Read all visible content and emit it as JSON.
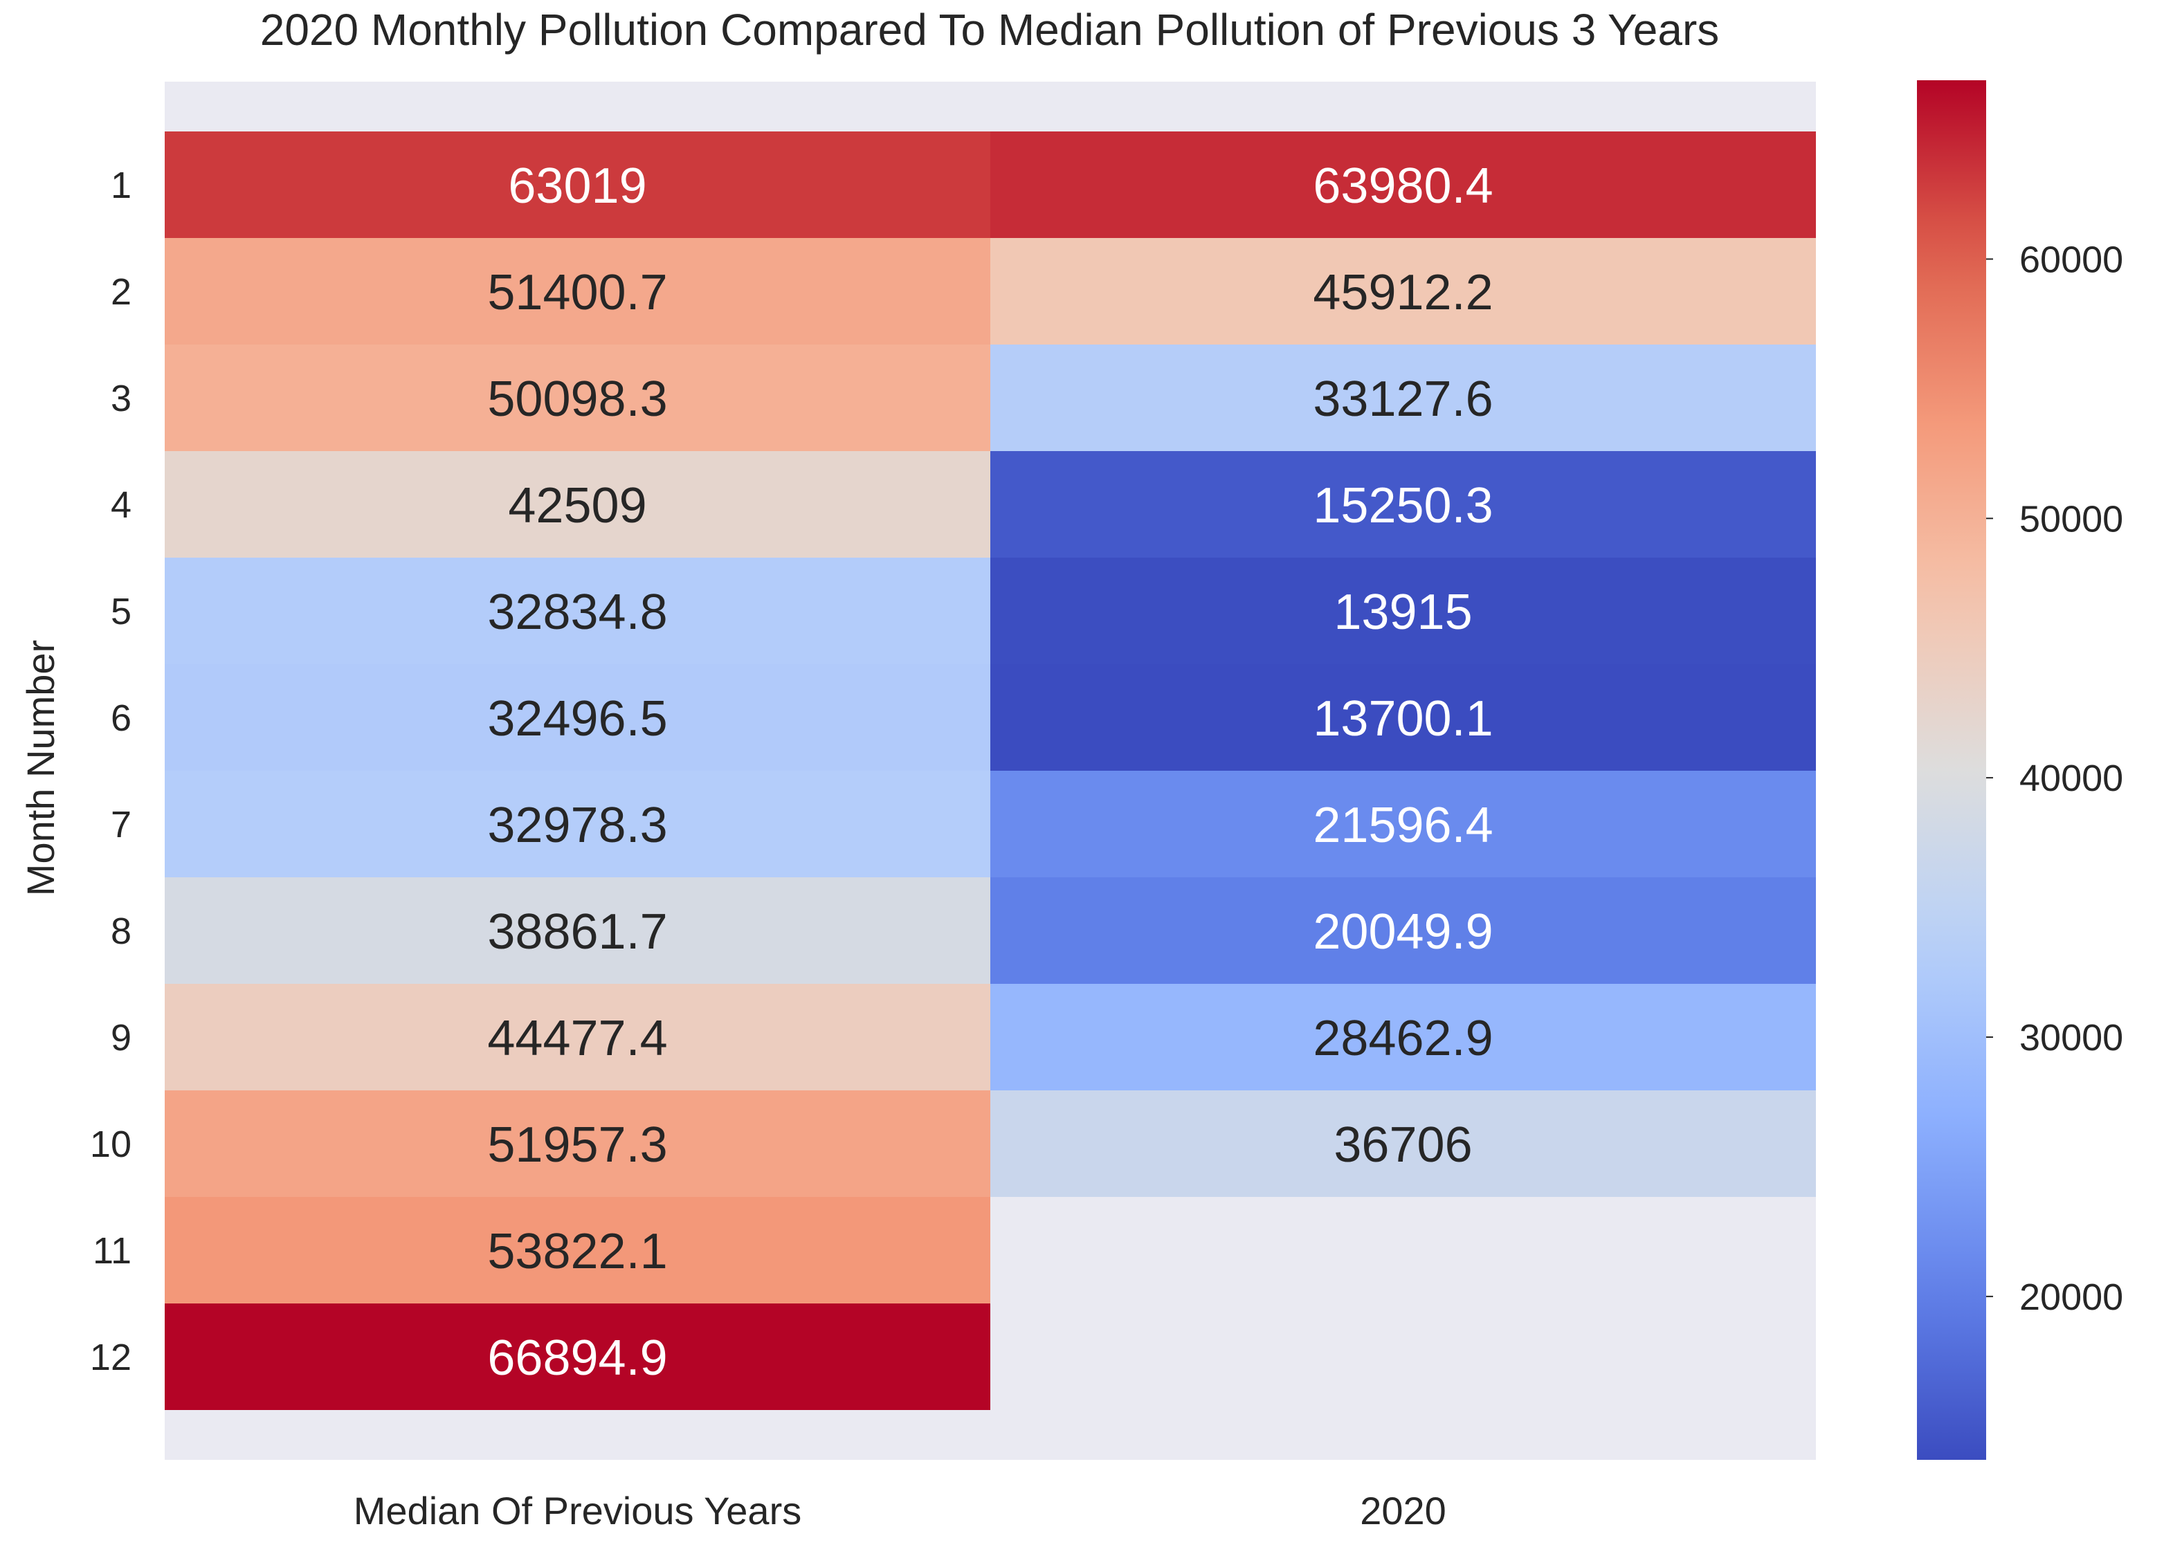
{
  "chart_data": {
    "type": "heatmap",
    "title": "2020 Monthly Pollution Compared To Median Pollution of Previous 3 Years",
    "ylabel": "Month Number",
    "xlabel": "",
    "rows": [
      "1",
      "2",
      "3",
      "4",
      "5",
      "6",
      "7",
      "8",
      "9",
      "10",
      "11",
      "12"
    ],
    "columns": [
      "Median Of Previous Years",
      "2020"
    ],
    "cells": [
      [
        "63019",
        "63980.4"
      ],
      [
        "51400.7",
        "45912.2"
      ],
      [
        "50098.3",
        "33127.6"
      ],
      [
        "42509",
        "15250.3"
      ],
      [
        "32834.8",
        "13915"
      ],
      [
        "32496.5",
        "13700.1"
      ],
      [
        "32978.3",
        "21596.4"
      ],
      [
        "38861.7",
        "20049.9"
      ],
      [
        "44477.4",
        "28462.9"
      ],
      [
        "51957.3",
        "36706"
      ],
      [
        "53822.1",
        null
      ],
      [
        "66894.9",
        null
      ]
    ],
    "colormap": "coolwarm",
    "vmin": 13700.1,
    "vmax": 66894.9,
    "colorbar_ticks": [
      "20000",
      "30000",
      "40000",
      "50000",
      "60000"
    ],
    "colorbar_tick_values": [
      20000,
      30000,
      40000,
      50000,
      60000
    ],
    "background_color": "#eaeaf2",
    "annotation_dark_color": "#262626",
    "annotation_light_color": "#ffffff"
  }
}
